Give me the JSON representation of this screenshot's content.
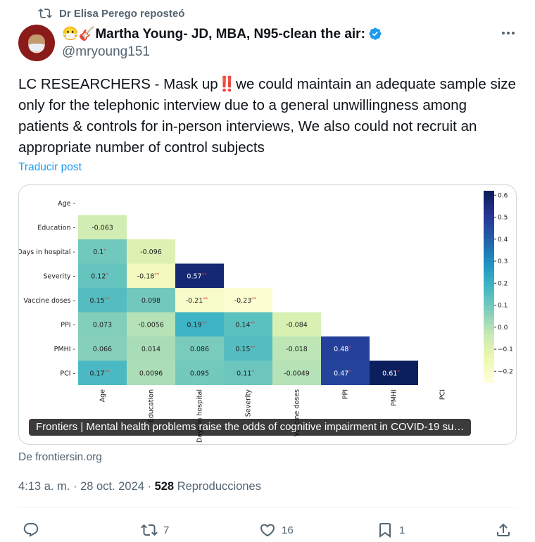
{
  "repost": {
    "text": "Dr Elisa Perego reposteó"
  },
  "author": {
    "name": "😷🎸Martha Young- JD, MBA, N95-clean the air:",
    "handle": "@mryoung151"
  },
  "tweet": {
    "text": "LC RESEARCHERS - Mask up‼️we could maintain an adequate sample size only for the telephonic interview due to a general unwillingness among patients & controls for in-person interviews, We also could not recruit an appropriate number of control subjects",
    "translate": "Traducir post"
  },
  "card": {
    "caption": "Frontiers | Mental health problems raise the odds of cognitive impairment in COVID-19 su…",
    "source": "De frontiersin.org"
  },
  "meta": {
    "time": "4:13 a. m.",
    "date": "28 oct. 2024",
    "views": "528",
    "views_label": "Reproducciones",
    "sep": "·"
  },
  "actions": {
    "replies": "",
    "reposts": "7",
    "likes": "16",
    "bookmarks": "1"
  },
  "colors": {
    "accent": "#1d9bf0",
    "muted": "#536471",
    "text": "#0f1419"
  },
  "chart_data": {
    "type": "heatmap",
    "variables": [
      "Age",
      "Education",
      "Days in hospital",
      "Severity",
      "Vaccine doses",
      "PPI",
      "PMHI",
      "PCI"
    ],
    "cells": [
      {
        "row": "Education",
        "col": "Age",
        "value": -0.063,
        "label": "-0.063",
        "sig": ""
      },
      {
        "row": "Days in hospital",
        "col": "Age",
        "value": 0.1,
        "label": "0.1",
        "sig": "*"
      },
      {
        "row": "Days in hospital",
        "col": "Education",
        "value": -0.096,
        "label": "-0.096",
        "sig": ""
      },
      {
        "row": "Severity",
        "col": "Age",
        "value": 0.12,
        "label": "0.12",
        "sig": "*"
      },
      {
        "row": "Severity",
        "col": "Education",
        "value": -0.18,
        "label": "-0.18",
        "sig": "**"
      },
      {
        "row": "Severity",
        "col": "Days in hospital",
        "value": 0.57,
        "label": "0.57",
        "sig": "**"
      },
      {
        "row": "Vaccine doses",
        "col": "Age",
        "value": 0.15,
        "label": "0.15",
        "sig": "**"
      },
      {
        "row": "Vaccine doses",
        "col": "Education",
        "value": 0.098,
        "label": "0.098",
        "sig": ""
      },
      {
        "row": "Vaccine doses",
        "col": "Days in hospital",
        "value": -0.21,
        "label": "-0.21",
        "sig": "**"
      },
      {
        "row": "Vaccine doses",
        "col": "Severity",
        "value": -0.23,
        "label": "-0.23",
        "sig": "**"
      },
      {
        "row": "PPI",
        "col": "Age",
        "value": 0.073,
        "label": "0.073",
        "sig": ""
      },
      {
        "row": "PPI",
        "col": "Education",
        "value": -0.0056,
        "label": "-0.0056",
        "sig": ""
      },
      {
        "row": "PPI",
        "col": "Days in hospital",
        "value": 0.19,
        "label": "0.19",
        "sig": "**"
      },
      {
        "row": "PPI",
        "col": "Severity",
        "value": 0.14,
        "label": "0.14",
        "sig": "**"
      },
      {
        "row": "PPI",
        "col": "Vaccine doses",
        "value": -0.084,
        "label": "-0.084",
        "sig": ""
      },
      {
        "row": "PMHI",
        "col": "Age",
        "value": 0.066,
        "label": "0.066",
        "sig": ""
      },
      {
        "row": "PMHI",
        "col": "Education",
        "value": 0.014,
        "label": "0.014",
        "sig": ""
      },
      {
        "row": "PMHI",
        "col": "Days in hospital",
        "value": 0.086,
        "label": "0.086",
        "sig": ""
      },
      {
        "row": "PMHI",
        "col": "Severity",
        "value": 0.15,
        "label": "0.15",
        "sig": "**"
      },
      {
        "row": "PMHI",
        "col": "Vaccine doses",
        "value": -0.018,
        "label": "-0.018",
        "sig": ""
      },
      {
        "row": "PMHI",
        "col": "PPI",
        "value": 0.48,
        "label": "0.48",
        "sig": "*"
      },
      {
        "row": "PCI",
        "col": "Age",
        "value": 0.17,
        "label": "0.17",
        "sig": "**"
      },
      {
        "row": "PCI",
        "col": "Education",
        "value": 0.0096,
        "label": "0.0096",
        "sig": ""
      },
      {
        "row": "PCI",
        "col": "Days in hospital",
        "value": 0.095,
        "label": "0.095",
        "sig": ""
      },
      {
        "row": "PCI",
        "col": "Severity",
        "value": 0.11,
        "label": "0.11",
        "sig": "*"
      },
      {
        "row": "PCI",
        "col": "Vaccine doses",
        "value": -0.0049,
        "label": "-0.0049",
        "sig": ""
      },
      {
        "row": "PCI",
        "col": "PPI",
        "value": 0.47,
        "label": "0.47",
        "sig": "*"
      },
      {
        "row": "PCI",
        "col": "PMHI",
        "value": 0.61,
        "label": "0.61",
        "sig": "*"
      }
    ],
    "colorbar": {
      "min": -0.25,
      "max": 0.62,
      "ticks": [
        "0.6",
        "0.5",
        "0.4",
        "0.3",
        "0.2",
        "0.1",
        "0.0",
        "−0.1",
        "−0.2"
      ],
      "tick_values": [
        0.6,
        0.5,
        0.4,
        0.3,
        0.2,
        0.1,
        0.0,
        -0.1,
        -0.2
      ]
    },
    "colormap": "YlGnBu",
    "sig_color": "#e0403a"
  }
}
